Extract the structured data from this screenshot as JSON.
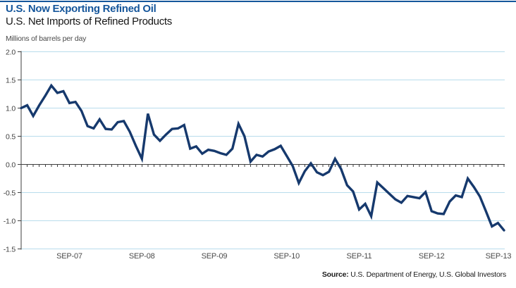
{
  "header": {
    "title": "U.S. Now Exporting Refined Oil",
    "subtitle": "U.S. Net Imports of Refined Products"
  },
  "source": {
    "label": "Source:",
    "text": " U.S. Department of Energy, U.S. Global Investors"
  },
  "style": {
    "accent_blue": "#15569b",
    "line_color": "#16396d",
    "grid_color": "#b8dcec",
    "axis_color": "#3f3f3f",
    "tick_label_color": "#3f3f3f",
    "x_label_color": "#4a4a4a"
  },
  "chart_data": {
    "type": "line",
    "title": "U.S. Now Exporting Refined Oil",
    "subtitle": "U.S. Net Imports of Refined Products",
    "ylabel": "Millions of barrels per day",
    "xlabel": "",
    "ylim": [
      -1.5,
      2.0
    ],
    "ytick_step": 0.5,
    "y_tick_labels": [
      "2.0",
      "1.5",
      "1.0",
      "0.5",
      "0.0",
      "-0.5",
      "-1.0",
      "-1.5"
    ],
    "y_tick_values": [
      2.0,
      1.5,
      1.0,
      0.5,
      0.0,
      -0.5,
      -1.0,
      -1.5
    ],
    "x_tick_labels": [
      "SEP-07",
      "SEP-08",
      "SEP-09",
      "SEP-10",
      "SEP-11",
      "SEP-12",
      "SEP-13"
    ],
    "x_tick_point_indices": [
      8,
      20,
      32,
      44,
      56,
      68,
      80
    ],
    "grid": true,
    "legend": false,
    "zero_baseline": true,
    "frequency": "monthly",
    "x_start": "JAN-07",
    "x_end": "SEP-13",
    "series": [
      {
        "name": "U.S. net imports of refined products (millions of barrels per day)",
        "values": [
          1.0,
          1.05,
          0.86,
          1.05,
          1.22,
          1.4,
          1.27,
          1.3,
          1.09,
          1.11,
          0.95,
          0.68,
          0.64,
          0.8,
          0.63,
          0.62,
          0.75,
          0.77,
          0.58,
          0.33,
          0.1,
          0.9,
          0.53,
          0.42,
          0.53,
          0.63,
          0.64,
          0.7,
          0.28,
          0.32,
          0.19,
          0.26,
          0.24,
          0.2,
          0.17,
          0.28,
          0.72,
          0.5,
          0.05,
          0.17,
          0.14,
          0.23,
          0.27,
          0.33,
          0.15,
          -0.03,
          -0.33,
          -0.12,
          0.02,
          -0.14,
          -0.19,
          -0.13,
          0.1,
          -0.08,
          -0.37,
          -0.48,
          -0.8,
          -0.7,
          -0.92,
          -0.32,
          -0.42,
          -0.52,
          -0.62,
          -0.68,
          -0.56,
          -0.58,
          -0.6,
          -0.49,
          -0.83,
          -0.87,
          -0.88,
          -0.66,
          -0.55,
          -0.58,
          -0.25,
          -0.4,
          -0.57,
          -0.83,
          -1.1,
          -1.04,
          -1.17
        ]
      }
    ]
  }
}
